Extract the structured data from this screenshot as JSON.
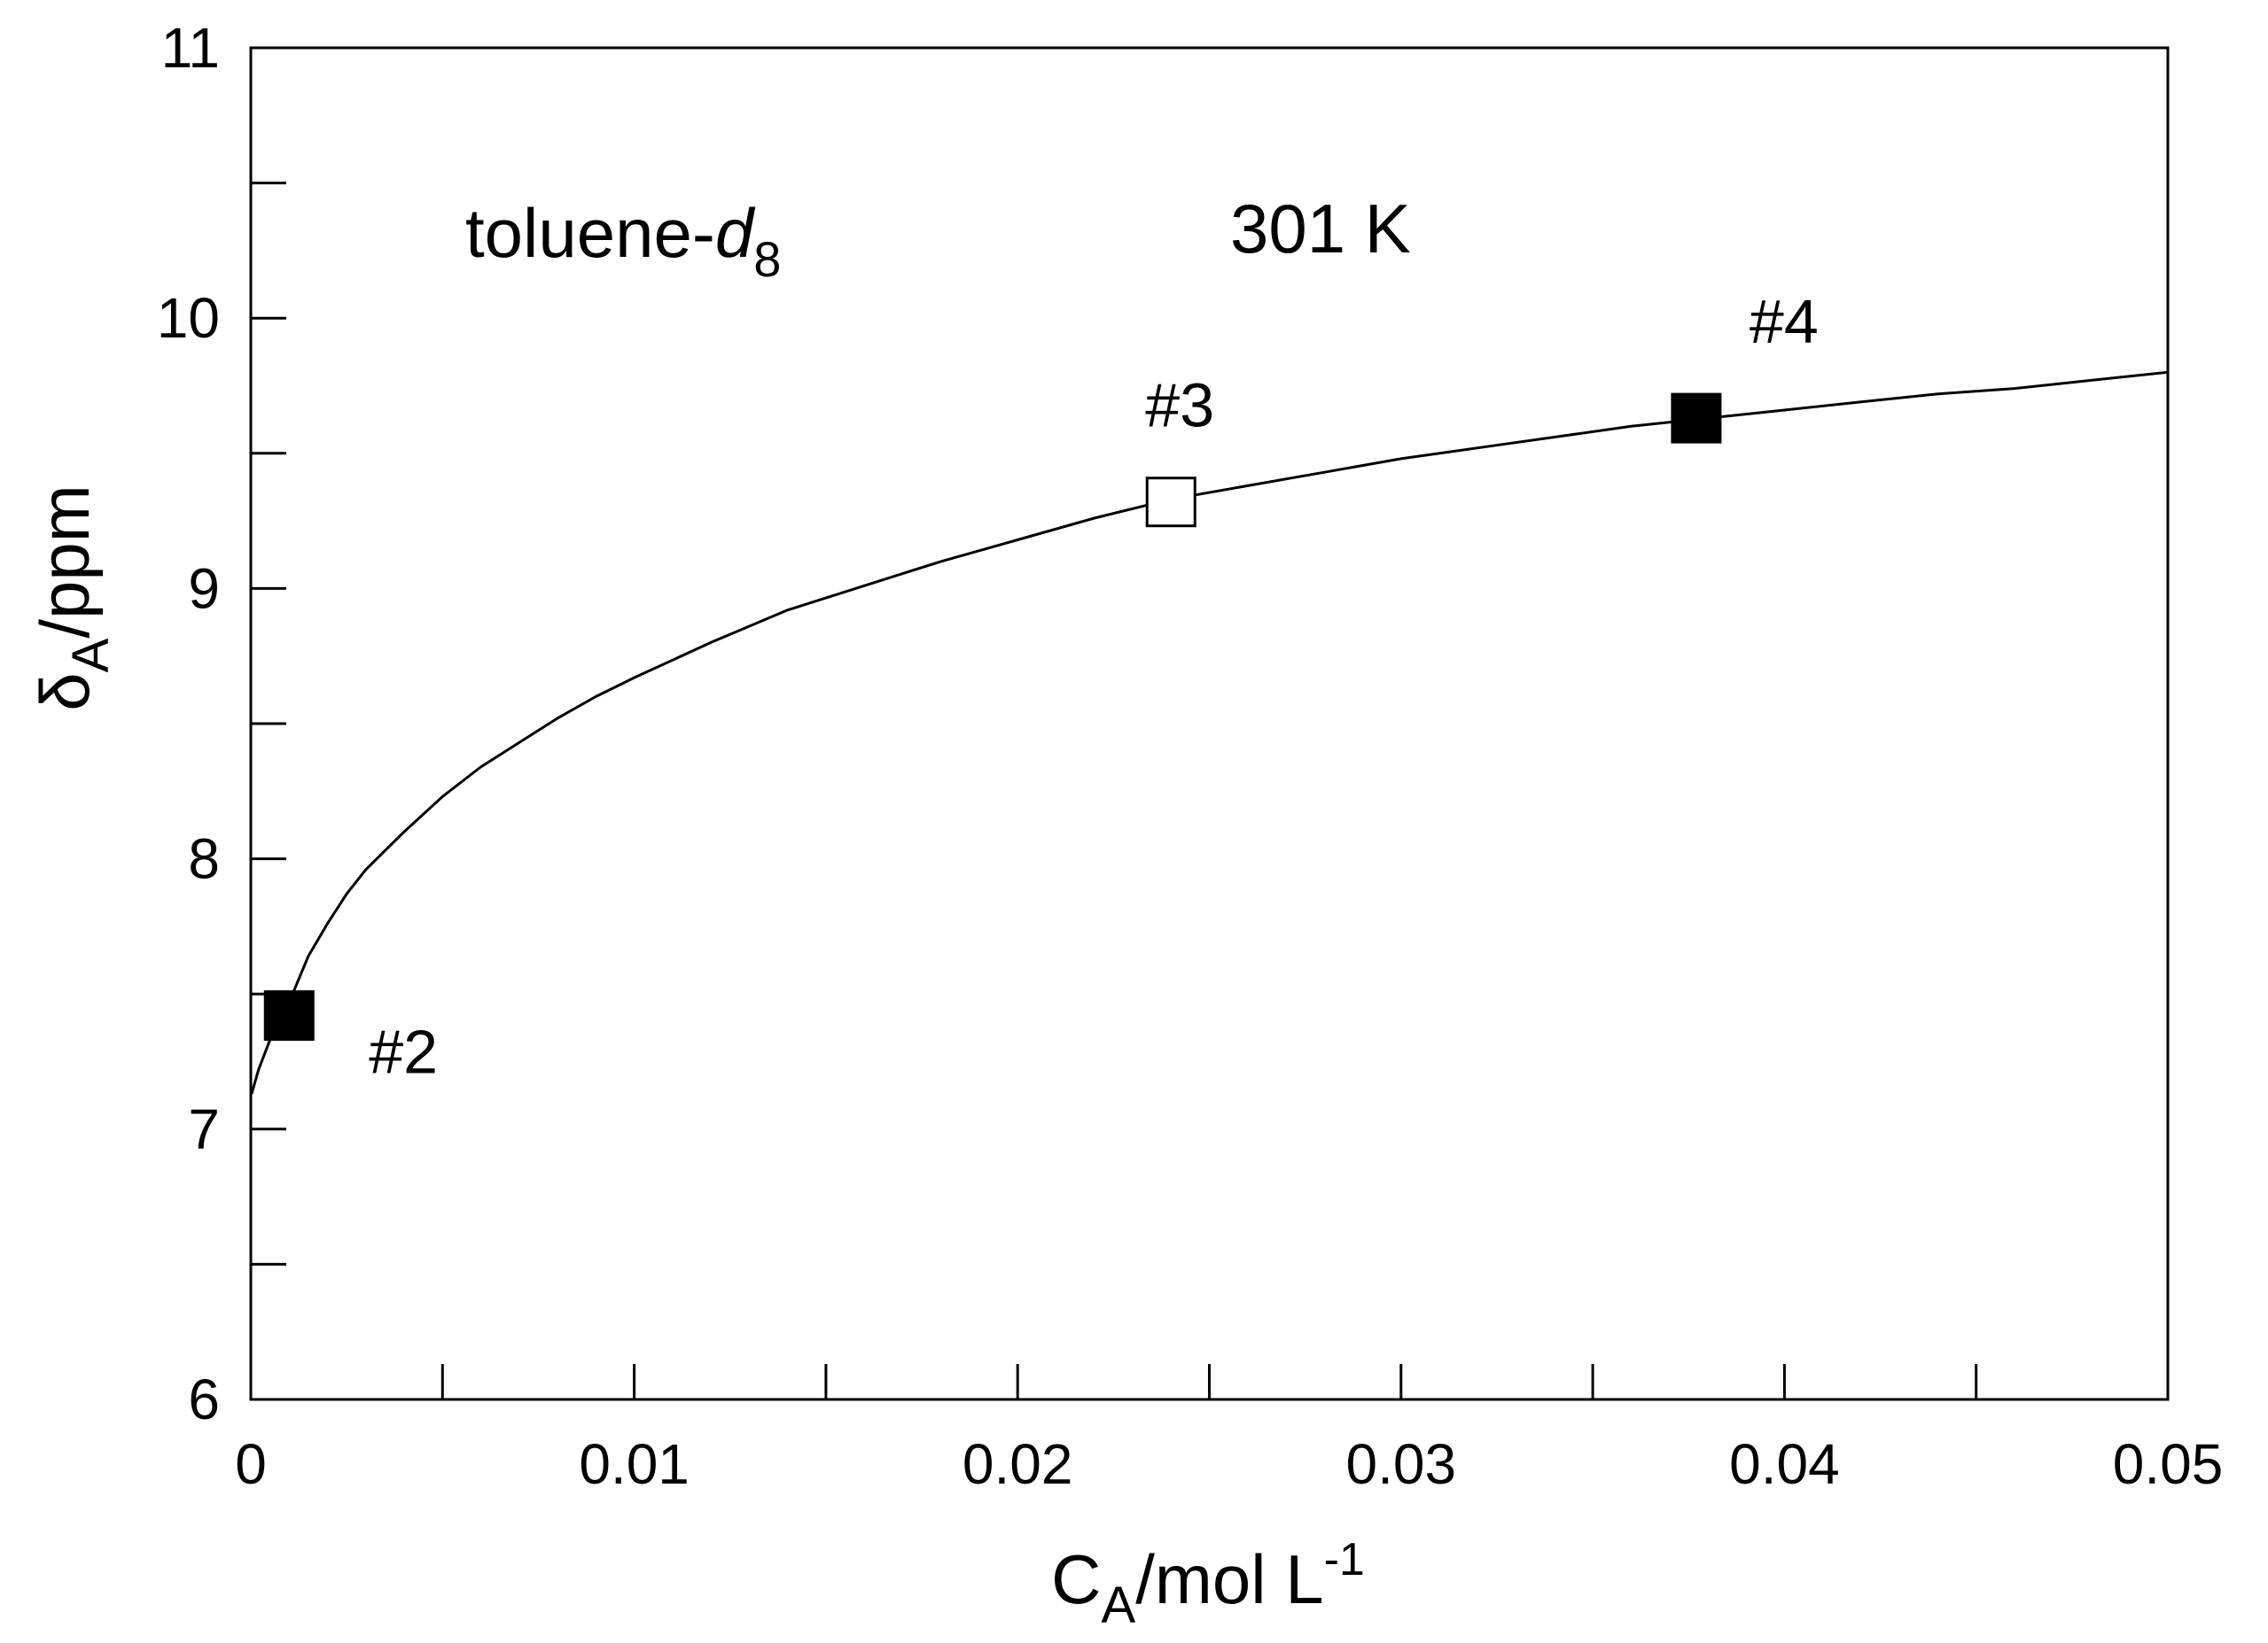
{
  "chart_data": {
    "type": "scatter",
    "title": "",
    "xlabel": {
      "main": "C",
      "sub": "A",
      "rest": "/mol L",
      "sup": "-1"
    },
    "ylabel": {
      "main": "δ",
      "sub": "A",
      "rest": "/ppm"
    },
    "xlim": [
      0,
      0.05
    ],
    "ylim": [
      6,
      11
    ],
    "grid": false,
    "x_major_ticks": [
      0,
      0.01,
      0.02,
      0.03,
      0.04,
      0.05
    ],
    "x_tick_labels": [
      "0",
      "0.01",
      "0.02",
      "0.03",
      "0.04",
      "0.05"
    ],
    "x_minor_ticks": [
      0.005,
      0.015,
      0.025,
      0.035,
      0.045
    ],
    "y_major_ticks": [
      6,
      7,
      8,
      9,
      10,
      11
    ],
    "y_tick_labels": [
      "6",
      "7",
      "8",
      "9",
      "10",
      "11"
    ],
    "y_minor_ticks": [
      6.5,
      7.5,
      8.5,
      9.5,
      10.5
    ],
    "annotations": {
      "solvent": {
        "main": "toluene-",
        "italic": "d",
        "sub": "8"
      },
      "temperature": "301 K"
    },
    "points": [
      {
        "label": "#2",
        "x": 0.001,
        "y": 7.42,
        "filled": true
      },
      {
        "label": "#3",
        "x": 0.024,
        "y": 9.32,
        "filled": false
      },
      {
        "label": "#4",
        "x": 0.0377,
        "y": 9.63,
        "filled": true
      }
    ],
    "fit_curve": {
      "x": [
        2e-05,
        0.0002,
        0.0005,
        0.001,
        0.0015,
        0.002,
        0.0025,
        0.003,
        0.004,
        0.005,
        0.006,
        0.007,
        0.008,
        0.009,
        0.01,
        0.012,
        0.014,
        0.016,
        0.018,
        0.02,
        0.022,
        0.024,
        0.026,
        0.028,
        0.03,
        0.032,
        0.034,
        0.036,
        0.038,
        0.04,
        0.042,
        0.044,
        0.046,
        0.048,
        0.05
      ],
      "y": [
        7.13,
        7.22,
        7.33,
        7.47,
        7.64,
        7.76,
        7.87,
        7.96,
        8.1,
        8.23,
        8.34,
        8.43,
        8.52,
        8.6,
        8.67,
        8.8,
        8.92,
        9.01,
        9.1,
        9.18,
        9.26,
        9.33,
        9.38,
        9.43,
        9.48,
        9.52,
        9.56,
        9.6,
        9.63,
        9.66,
        9.69,
        9.72,
        9.74,
        9.77,
        9.8
      ]
    }
  }
}
